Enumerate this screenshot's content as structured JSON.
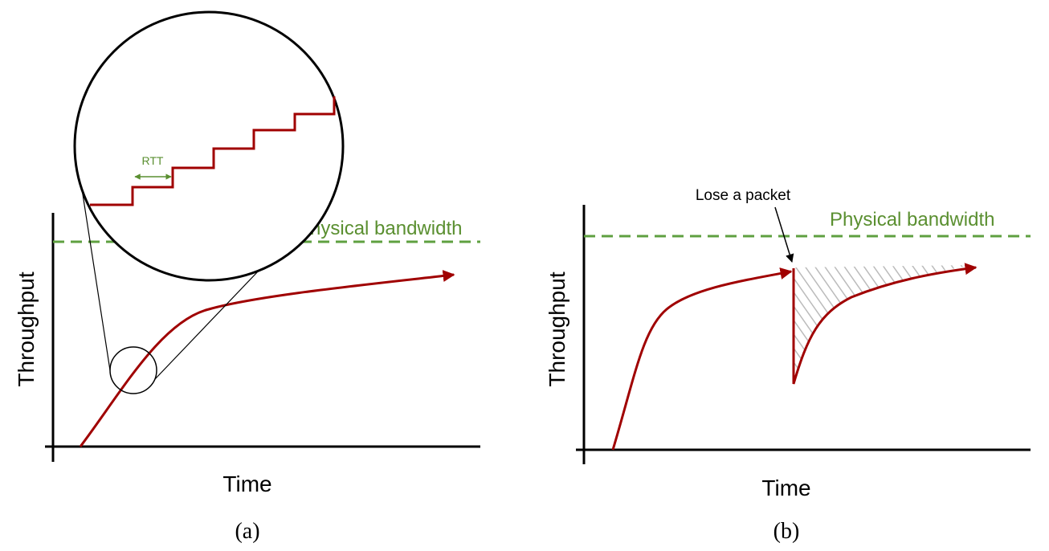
{
  "panels": [
    {
      "caption": "(a)",
      "y_label": "Throughput",
      "x_label": "Time",
      "bandwidth_label": "Physical bandwidth",
      "zoom_label": "RTT"
    },
    {
      "caption": "(b)",
      "y_label": "Throughput",
      "x_label": "Time",
      "bandwidth_label": "Physical bandwidth",
      "annotation": "Lose a packet"
    }
  ]
}
